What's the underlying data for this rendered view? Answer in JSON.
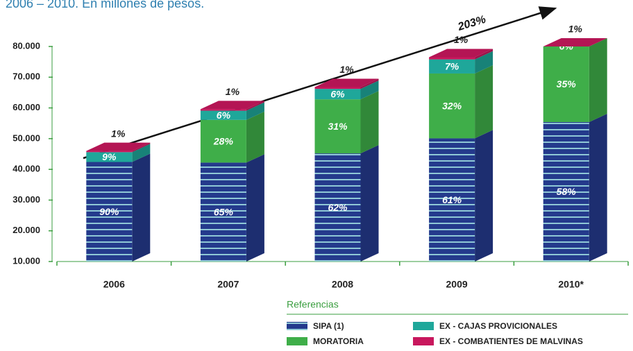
{
  "chart_data": {
    "type": "stacked_bar_3d",
    "title": "2006 – 2010. En millones de pesos.",
    "annotation": "203%",
    "legend_title": "Referencias",
    "categories": [
      "2006",
      "2007",
      "2008",
      "2009",
      "2010*"
    ],
    "series": [
      {
        "name": "SIPA (1)",
        "color": "#243a8c",
        "values": [
          32400,
          32200,
          35200,
          40100,
          45400
        ],
        "share_labels": [
          "90%",
          "65%",
          "62%",
          "61%",
          "58%"
        ]
      },
      {
        "name": "MORATORIA",
        "color": "#3fae49",
        "values": [
          null,
          13900,
          17600,
          21100,
          27400
        ],
        "share_labels": [
          null,
          "28%",
          "31%",
          "32%",
          "35%"
        ]
      },
      {
        "name": "EX - CAJAS PROVICIONALES",
        "color": "#1fa79a",
        "values": [
          3200,
          3000,
          3400,
          4600,
          4700
        ],
        "share_labels": [
          "9%",
          "6%",
          "6%",
          "7%",
          "6%"
        ]
      },
      {
        "name": "EX - COMBATIENTES DE MALVINAS",
        "color": "#c8175d",
        "values": [
          400,
          500,
          600,
          700,
          800
        ],
        "share_labels": [
          "1%",
          "1%",
          "1%",
          "1%",
          "1%"
        ]
      }
    ],
    "ylim": [
      10000,
      80000
    ],
    "yticks": [
      {
        "value": 10000,
        "label": "10.000"
      },
      {
        "value": 20000,
        "label": "20.000"
      },
      {
        "value": 30000,
        "label": "30.000"
      },
      {
        "value": 40000,
        "label": "40.000"
      },
      {
        "value": 50000,
        "label": "50.000"
      },
      {
        "value": 60000,
        "label": "60.000"
      },
      {
        "value": 70000,
        "label": "70.000"
      },
      {
        "value": 80000,
        "label": "80.000"
      }
    ],
    "grid": false
  }
}
